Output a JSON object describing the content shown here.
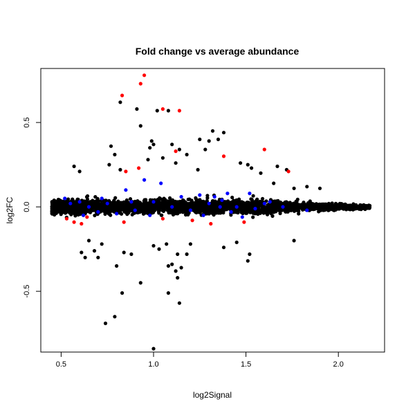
{
  "chart_data": {
    "type": "scatter",
    "title": "Fold change vs average abundance",
    "xlabel": "log2Signal",
    "ylabel": "log2FC",
    "xlim": [
      0.39,
      2.25
    ],
    "ylim": [
      -0.86,
      0.82
    ],
    "xticks": [
      "0.5",
      "1.0",
      "1.5",
      "2.0"
    ],
    "yticks": [
      "-0.5",
      "0.0",
      "0.5"
    ],
    "grid": false,
    "legend": "none",
    "colors": {
      "bulk": "#000000",
      "highlight_blue": "#0000ff",
      "highlight_red": "#ff0000"
    },
    "series": [
      {
        "color": "#000000",
        "points": [
          [
            0.82,
            0.62
          ],
          [
            0.91,
            0.58
          ],
          [
            1.02,
            0.57
          ],
          [
            1.08,
            0.57
          ],
          [
            0.93,
            0.48
          ],
          [
            1.32,
            0.45
          ],
          [
            1.38,
            0.44
          ],
          [
            1.35,
            0.4
          ],
          [
            1.3,
            0.39
          ],
          [
            1.25,
            0.4
          ],
          [
            0.99,
            0.39
          ],
          [
            1.0,
            0.37
          ],
          [
            1.1,
            0.37
          ],
          [
            1.14,
            0.34
          ],
          [
            1.28,
            0.34
          ],
          [
            0.77,
            0.36
          ],
          [
            0.79,
            0.31
          ],
          [
            0.98,
            0.35
          ],
          [
            1.18,
            0.31
          ],
          [
            1.05,
            0.29
          ],
          [
            0.97,
            0.28
          ],
          [
            1.12,
            0.26
          ],
          [
            1.47,
            0.26
          ],
          [
            1.51,
            0.25
          ],
          [
            1.67,
            0.24
          ],
          [
            0.76,
            0.25
          ],
          [
            0.82,
            0.22
          ],
          [
            0.57,
            0.24
          ],
          [
            0.6,
            0.21
          ],
          [
            1.24,
            0.22
          ],
          [
            1.58,
            0.2
          ],
          [
            1.53,
            0.23
          ],
          [
            1.72,
            0.22
          ],
          [
            1.83,
            0.12
          ],
          [
            1.76,
            0.11
          ],
          [
            1.9,
            0.11
          ],
          [
            1.65,
            0.14
          ],
          [
            0.65,
            -0.2
          ],
          [
            0.68,
            -0.26
          ],
          [
            0.61,
            -0.27
          ],
          [
            0.72,
            -0.22
          ],
          [
            0.7,
            -0.3
          ],
          [
            0.63,
            -0.3
          ],
          [
            0.8,
            -0.35
          ],
          [
            0.84,
            -0.27
          ],
          [
            0.88,
            -0.28
          ],
          [
            1.0,
            -0.23
          ],
          [
            1.03,
            -0.25
          ],
          [
            1.07,
            -0.22
          ],
          [
            1.13,
            -0.28
          ],
          [
            1.15,
            -0.36
          ],
          [
            1.1,
            -0.34
          ],
          [
            1.08,
            -0.35
          ],
          [
            1.13,
            -0.42
          ],
          [
            1.12,
            -0.38
          ],
          [
            1.18,
            -0.28
          ],
          [
            1.2,
            -0.22
          ],
          [
            1.38,
            -0.24
          ],
          [
            1.45,
            -0.21
          ],
          [
            1.52,
            -0.28
          ],
          [
            1.51,
            -0.32
          ],
          [
            1.76,
            -0.2
          ],
          [
            0.83,
            -0.51
          ],
          [
            0.93,
            -0.45
          ],
          [
            1.08,
            -0.51
          ],
          [
            1.14,
            -0.57
          ],
          [
            0.79,
            -0.65
          ],
          [
            0.74,
            -0.69
          ],
          [
            1.0,
            -0.84
          ]
        ]
      },
      {
        "color": "#ff0000",
        "points": [
          [
            0.95,
            0.78
          ],
          [
            0.93,
            0.73
          ],
          [
            0.83,
            0.66
          ],
          [
            1.05,
            0.58
          ],
          [
            1.14,
            0.57
          ],
          [
            1.12,
            0.33
          ],
          [
            1.38,
            0.3
          ],
          [
            1.6,
            0.34
          ],
          [
            1.73,
            0.21
          ],
          [
            0.92,
            0.23
          ],
          [
            0.85,
            0.21
          ],
          [
            0.53,
            -0.07
          ],
          [
            0.57,
            -0.09
          ],
          [
            0.61,
            -0.1
          ],
          [
            0.64,
            -0.06
          ],
          [
            0.84,
            -0.09
          ],
          [
            1.05,
            -0.07
          ],
          [
            1.21,
            -0.08
          ],
          [
            1.31,
            -0.1
          ],
          [
            1.49,
            -0.09
          ]
        ]
      },
      {
        "color": "#0000ff",
        "points": [
          [
            0.85,
            0.1
          ],
          [
            0.95,
            0.16
          ],
          [
            1.04,
            0.14
          ],
          [
            1.25,
            0.07
          ],
          [
            1.33,
            0.06
          ],
          [
            1.37,
            0.04
          ],
          [
            1.4,
            0.08
          ],
          [
            1.52,
            0.08
          ],
          [
            1.63,
            0.03
          ],
          [
            1.83,
            -0.02
          ],
          [
            0.52,
            0.05
          ],
          [
            0.55,
            0.02
          ],
          [
            0.6,
            0.03
          ],
          [
            0.65,
            0.0
          ],
          [
            0.7,
            -0.03
          ],
          [
            0.75,
            0.02
          ],
          [
            0.8,
            -0.04
          ],
          [
            0.9,
            -0.02
          ],
          [
            1.0,
            0.03
          ],
          [
            1.1,
            0.0
          ],
          [
            1.2,
            -0.02
          ],
          [
            1.3,
            0.02
          ],
          [
            1.45,
            0.0
          ],
          [
            1.55,
            -0.01
          ],
          [
            1.7,
            0.0
          ],
          [
            0.62,
            -0.05
          ],
          [
            0.72,
            0.05
          ],
          [
            0.88,
            0.03
          ],
          [
            0.98,
            -0.05
          ],
          [
            1.15,
            0.06
          ],
          [
            1.27,
            -0.05
          ],
          [
            1.42,
            -0.03
          ],
          [
            1.6,
            0.02
          ],
          [
            1.48,
            -0.06
          ],
          [
            1.36,
            0.0
          ]
        ]
      }
    ]
  }
}
